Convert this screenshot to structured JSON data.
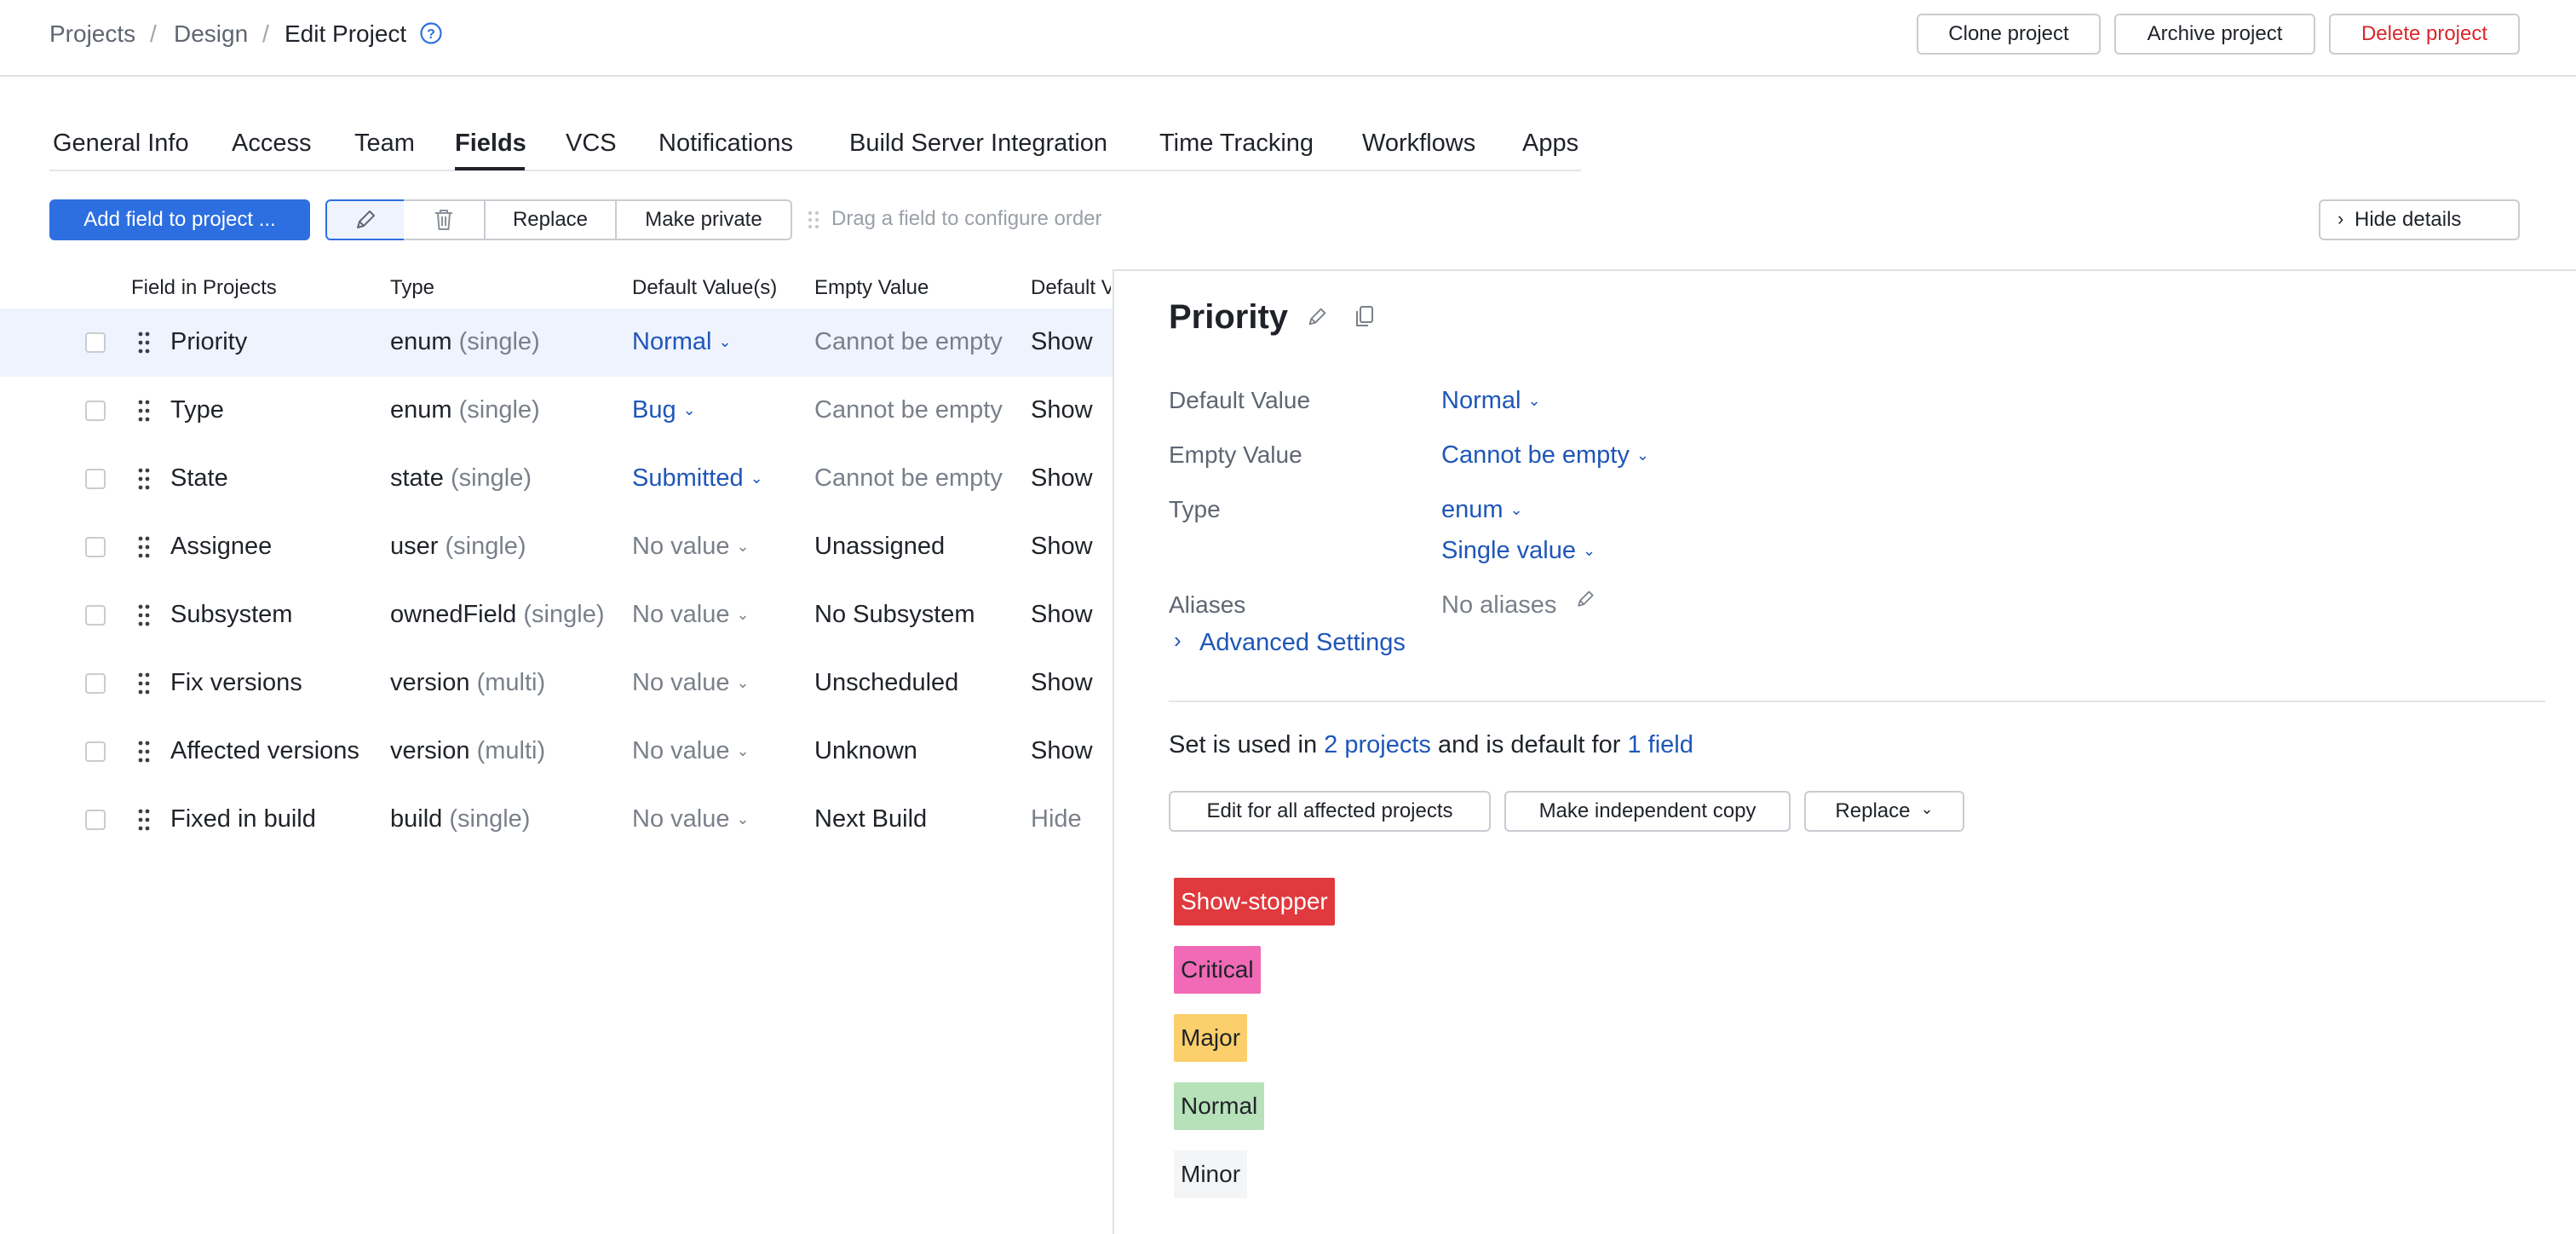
{
  "breadcrumb": {
    "items": [
      "Projects",
      "Design"
    ],
    "current": "Edit Project"
  },
  "header_actions": {
    "clone": "Clone project",
    "archive": "Archive project",
    "delete": "Delete project"
  },
  "tabs": [
    "General Info",
    "Access",
    "Team",
    "Fields",
    "VCS",
    "Notifications",
    "Build Server Integration",
    "Time Tracking",
    "Workflows",
    "Apps"
  ],
  "active_tab": "Fields",
  "toolbar": {
    "add_field": "Add field to project ...",
    "replace": "Replace",
    "make_private": "Make private",
    "hint": "Drag a field to configure order",
    "hide_details": "Hide details"
  },
  "table": {
    "headers": [
      "Field in Projects",
      "Type",
      "Default Value(s)",
      "Empty Value",
      "Default V"
    ],
    "rows": [
      {
        "name": "Priority",
        "type": "enum",
        "cardinality": "(single)",
        "default": "Normal",
        "empty": "Cannot be empty",
        "visibility": "Show"
      },
      {
        "name": "Type",
        "type": "enum",
        "cardinality": "(single)",
        "default": "Bug",
        "empty": "Cannot be empty",
        "visibility": "Show"
      },
      {
        "name": "State",
        "type": "state",
        "cardinality": "(single)",
        "default": "Submitted",
        "empty": "Cannot be empty",
        "visibility": "Show"
      },
      {
        "name": "Assignee",
        "type": "user",
        "cardinality": "(single)",
        "default": "No value",
        "empty": "Unassigned",
        "visibility": "Show"
      },
      {
        "name": "Subsystem",
        "type": "ownedField",
        "cardinality": "(single)",
        "default": "No value",
        "empty": "No Subsystem",
        "visibility": "Show"
      },
      {
        "name": "Fix versions",
        "type": "version",
        "cardinality": "(multi)",
        "default": "No value",
        "empty": "Unscheduled",
        "visibility": "Show"
      },
      {
        "name": "Affected versions",
        "type": "version",
        "cardinality": "(multi)",
        "default": "No value",
        "empty": "Unknown",
        "visibility": "Show"
      },
      {
        "name": "Fixed in build",
        "type": "build",
        "cardinality": "(single)",
        "default": "No value",
        "empty": "Next Build",
        "visibility": "Hide"
      }
    ]
  },
  "details": {
    "title": "Priority",
    "default_value_label": "Default Value",
    "default_value": "Normal",
    "empty_value_label": "Empty Value",
    "empty_value": "Cannot be empty",
    "type_label": "Type",
    "type_value": "enum",
    "cardinality_value": "Single value",
    "aliases_label": "Aliases",
    "aliases_value": "No aliases",
    "advanced": "Advanced Settings",
    "set_text_1": "Set is used in",
    "set_link_projects": "2 projects",
    "set_text_2": "and is default for",
    "set_link_fields": "1 field",
    "edit_all": "Edit for all affected projects",
    "make_copy": "Make independent copy",
    "replace": "Replace",
    "values": [
      {
        "label": "Show-stopper",
        "bg": "#e0393e",
        "fg": "#ffffff"
      },
      {
        "label": "Critical",
        "bg": "#f06ab5",
        "fg": "#1f2329"
      },
      {
        "label": "Major",
        "bg": "#fbcf6b",
        "fg": "#1f2329"
      },
      {
        "label": "Normal",
        "bg": "#b7e1b9",
        "fg": "#1f2329"
      },
      {
        "label": "Minor",
        "bg": "#f4f5f6",
        "fg": "#1f2329"
      }
    ]
  },
  "colors": {
    "accent": "#2d6fe0",
    "link": "#1f56b8",
    "danger": "#d9262b",
    "selected_row": "#eef3fd"
  }
}
